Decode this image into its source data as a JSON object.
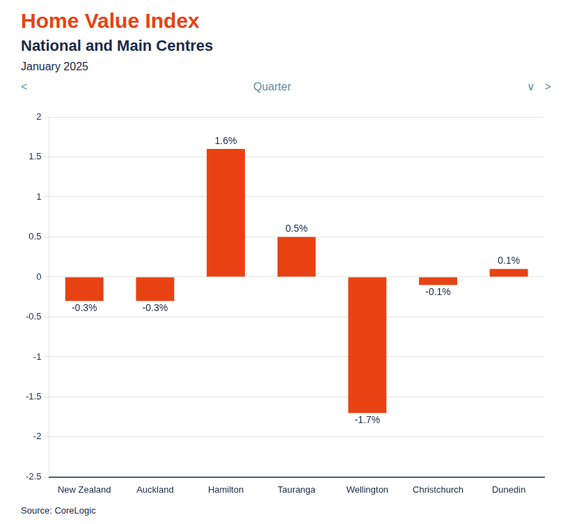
{
  "chart_data": {
    "type": "bar",
    "title": "Home Value Index",
    "subtitle": "National and Main Centres",
    "annotations": [
      "January 2025",
      "<",
      "Quarter",
      "∨",
      ">",
      "Source: CoreLogic"
    ],
    "categories": [
      "New Zealand",
      "Auckland",
      "Hamilton",
      "Tauranga",
      "Wellington",
      "Christchurch",
      "Dunedin"
    ],
    "values": [
      -0.3,
      -0.3,
      1.6,
      0.5,
      -1.7,
      -0.1,
      0.1
    ],
    "value_labels": [
      "-0.3%",
      "-0.3%",
      "1.6%",
      "0.5%",
      "-1.7%",
      "-0.1%",
      "0.1%"
    ],
    "data_labels": true,
    "color": "#E84213",
    "ylim": [
      -2.5,
      2.0
    ],
    "yticks": [
      -2.5,
      -2,
      -1.5,
      -1,
      -0.5,
      0,
      0.5,
      1,
      1.5,
      2
    ],
    "grid": true
  }
}
